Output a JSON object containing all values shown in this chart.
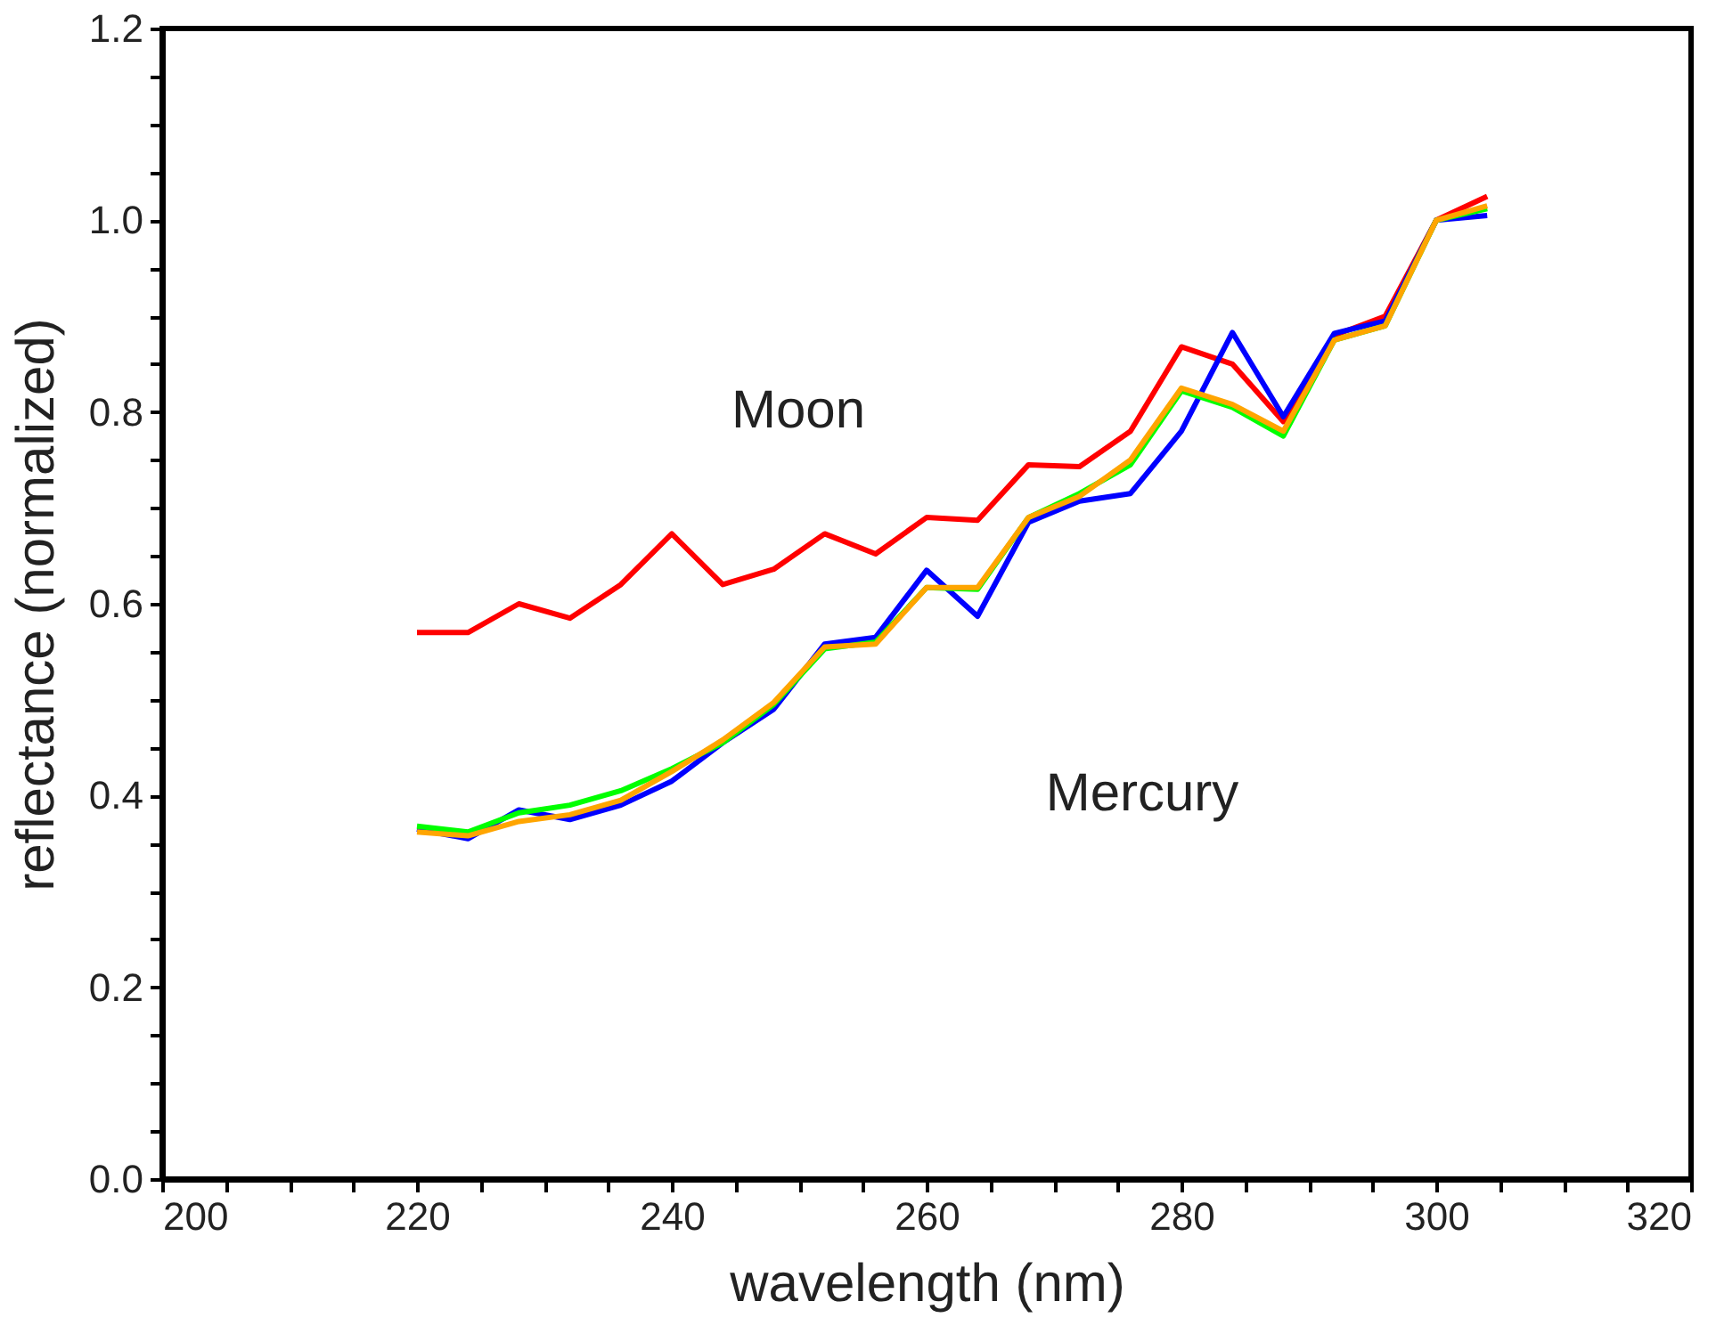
{
  "chart_data": {
    "type": "line",
    "xlabel": "wavelength (nm)",
    "ylabel": "reflectance (normalized)",
    "x": [
      220,
      224,
      228,
      232,
      236,
      240,
      244,
      248,
      252,
      256,
      260,
      264,
      268,
      272,
      276,
      280,
      284,
      288,
      292,
      296,
      300,
      304
    ],
    "series": [
      {
        "color": "#ff0000",
        "values": [
          0.57,
          0.57,
          0.6,
          0.585,
          0.62,
          0.673,
          0.62,
          0.636,
          0.673,
          0.652,
          0.69,
          0.687,
          0.745,
          0.743,
          0.78,
          0.868,
          0.85,
          0.79,
          0.88,
          0.9,
          1.0,
          1.025
        ]
      },
      {
        "color": "#0000ff",
        "values": [
          0.365,
          0.355,
          0.385,
          0.375,
          0.39,
          0.415,
          0.455,
          0.49,
          0.558,
          0.565,
          0.635,
          0.587,
          0.685,
          0.707,
          0.715,
          0.78,
          0.883,
          0.795,
          0.882,
          0.895,
          1.0,
          1.005
        ]
      },
      {
        "color": "#00ff00",
        "values": [
          0.368,
          0.362,
          0.382,
          0.39,
          0.405,
          0.428,
          0.455,
          0.495,
          0.553,
          0.56,
          0.617,
          0.615,
          0.69,
          0.715,
          0.745,
          0.822,
          0.805,
          0.775,
          0.875,
          0.89,
          1.0,
          1.012
        ]
      },
      {
        "color": "#ffa500",
        "values": [
          0.362,
          0.358,
          0.373,
          0.38,
          0.395,
          0.425,
          0.458,
          0.497,
          0.555,
          0.558,
          0.617,
          0.617,
          0.69,
          0.712,
          0.75,
          0.825,
          0.808,
          0.78,
          0.875,
          0.89,
          1.0,
          1.015
        ]
      }
    ],
    "xlim": [
      200,
      320
    ],
    "ylim": [
      0.0,
      1.2
    ],
    "xticks": [
      200,
      {
        "value": 205,
        "label": null
      },
      {
        "value": 210,
        "label": null
      },
      {
        "value": 215,
        "label": null
      },
      220,
      {
        "value": 225,
        "label": null
      },
      {
        "value": 230,
        "label": null
      },
      {
        "value": 235,
        "label": null
      },
      240,
      {
        "value": 245,
        "label": null
      },
      {
        "value": 250,
        "label": null
      },
      {
        "value": 255,
        "label": null
      },
      260,
      {
        "value": 265,
        "label": null
      },
      {
        "value": 270,
        "label": null
      },
      {
        "value": 275,
        "label": null
      },
      280,
      {
        "value": 285,
        "label": null
      },
      {
        "value": 290,
        "label": null
      },
      {
        "value": 295,
        "label": null
      },
      300,
      {
        "value": 305,
        "label": null
      },
      {
        "value": 310,
        "label": null
      },
      {
        "value": 315,
        "label": null
      },
      320
    ],
    "yticks": [
      {
        "value": 0,
        "label": "0.0"
      },
      {
        "value": 0.05,
        "label": null
      },
      {
        "value": 0.1,
        "label": null
      },
      {
        "value": 0.15,
        "label": null
      },
      0.2,
      {
        "value": 0.25,
        "label": null
      },
      {
        "value": 0.3,
        "label": null
      },
      {
        "value": 0.35,
        "label": null
      },
      0.4,
      {
        "value": 0.45,
        "label": null
      },
      {
        "value": 0.5,
        "label": null
      },
      {
        "value": 0.55,
        "label": null
      },
      0.6,
      {
        "value": 0.65,
        "label": null
      },
      {
        "value": 0.7,
        "label": null
      },
      {
        "value": 0.75,
        "label": null
      },
      0.8,
      {
        "value": 0.85,
        "label": null
      },
      {
        "value": 0.9,
        "label": null
      },
      {
        "value": 0.95,
        "label": null
      },
      {
        "value": 1.0,
        "label": "1.0"
      },
      {
        "value": 1.05,
        "label": null
      },
      {
        "value": 1.1,
        "label": null
      },
      {
        "value": 1.15,
        "label": null
      },
      1.2
    ],
    "annotations": [
      "Moon",
      "Mercury"
    ],
    "grid": false,
    "marker": "none",
    "line_style": "solid"
  }
}
